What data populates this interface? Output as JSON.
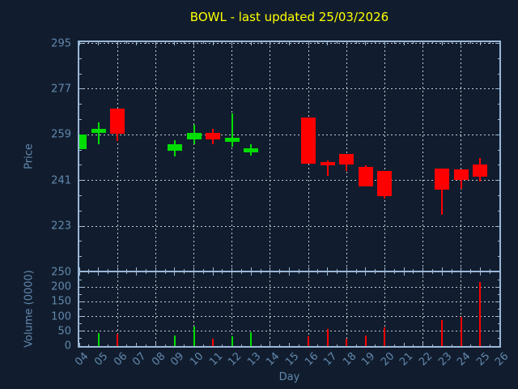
{
  "title": "BOWL - last updated 25/03/2026",
  "colors": {
    "background": "#111d2e",
    "frame": "#9bb8d8",
    "grid": "#c3c9d1",
    "labels": "#6288ad",
    "title": "#ffff00",
    "up": "#00dd00",
    "down": "#ff0000"
  },
  "x_axis": {
    "label": "Day",
    "tick_labels": [
      "04",
      "05",
      "06",
      "07",
      "08",
      "09",
      "10",
      "11",
      "12",
      "13",
      "14",
      "15",
      "16",
      "17",
      "18",
      "19",
      "20",
      "21",
      "22",
      "23",
      "24",
      "25",
      "26"
    ]
  },
  "chart_data": [
    {
      "type": "candlestick",
      "title": "BOWL - last updated 25/03/2026",
      "ylabel": "Price",
      "xlabel": "Day",
      "yticks": [
        295,
        277,
        259,
        241,
        223
      ],
      "ylim": [
        205.5,
        295.5
      ],
      "xlim": [
        4,
        26
      ],
      "grid": "dashed; vertical gridlines every 2 days",
      "up_color": "#00dd00",
      "down_color": "#ff0000",
      "ohlc": [
        {
          "day": "04",
          "open": 253.5,
          "high": 259.2,
          "low": 253.5,
          "close": 259.2
        },
        {
          "day": "05",
          "open": 259.6,
          "high": 264.0,
          "low": 255.2,
          "close": 261.3
        },
        {
          "day": "06",
          "open": 269.3,
          "high": 269.3,
          "low": 256.6,
          "close": 259.4
        },
        {
          "day": "09",
          "open": 252.6,
          "high": 256.9,
          "low": 250.4,
          "close": 255.2
        },
        {
          "day": "10",
          "open": 257.3,
          "high": 263.0,
          "low": 255.2,
          "close": 259.9
        },
        {
          "day": "11",
          "open": 259.7,
          "high": 261.5,
          "low": 255.3,
          "close": 257.3
        },
        {
          "day": "12",
          "open": 256.1,
          "high": 267.3,
          "low": 254.2,
          "close": 257.9
        },
        {
          "day": "13",
          "open": 252.0,
          "high": 255.2,
          "low": 250.9,
          "close": 253.6
        },
        {
          "day": "16",
          "open": 265.8,
          "high": 265.8,
          "low": 247.6,
          "close": 247.6
        },
        {
          "day": "17",
          "open": 248.2,
          "high": 248.8,
          "low": 242.9,
          "close": 247.1
        },
        {
          "day": "18",
          "open": 251.3,
          "high": 251.3,
          "low": 244.9,
          "close": 247.3
        },
        {
          "day": "19",
          "open": 246.4,
          "high": 247.0,
          "low": 238.7,
          "close": 238.7
        },
        {
          "day": "20",
          "open": 244.6,
          "high": 244.6,
          "low": 233.9,
          "close": 235.0
        },
        {
          "day": "23",
          "open": 245.7,
          "high": 245.7,
          "low": 227.6,
          "close": 237.4
        },
        {
          "day": "24",
          "open": 245.5,
          "high": 245.5,
          "low": 237.7,
          "close": 241.4
        },
        {
          "day": "25",
          "open": 247.3,
          "high": 249.9,
          "low": 240.6,
          "close": 242.5
        }
      ]
    },
    {
      "type": "bar",
      "ylabel": "Volume (0000)",
      "yticks": [
        250,
        200,
        150,
        100,
        50,
        0
      ],
      "ylim": [
        0,
        250
      ],
      "xlim": [
        4,
        26
      ],
      "bars": [
        {
          "day": "05",
          "value": 43,
          "direction": "up"
        },
        {
          "day": "06",
          "value": 40,
          "direction": "down"
        },
        {
          "day": "09",
          "value": 37,
          "direction": "up"
        },
        {
          "day": "10",
          "value": 66,
          "direction": "up"
        },
        {
          "day": "11",
          "value": 26,
          "direction": "down"
        },
        {
          "day": "12",
          "value": 34,
          "direction": "up"
        },
        {
          "day": "13",
          "value": 46,
          "direction": "up"
        },
        {
          "day": "16",
          "value": 34,
          "direction": "down"
        },
        {
          "day": "17",
          "value": 57,
          "direction": "down"
        },
        {
          "day": "18",
          "value": 26,
          "direction": "down"
        },
        {
          "day": "19",
          "value": 35,
          "direction": "down"
        },
        {
          "day": "20",
          "value": 64,
          "direction": "down"
        },
        {
          "day": "23",
          "value": 89,
          "direction": "down"
        },
        {
          "day": "24",
          "value": 98,
          "direction": "down"
        },
        {
          "day": "25",
          "value": 216,
          "direction": "down"
        }
      ]
    }
  ]
}
